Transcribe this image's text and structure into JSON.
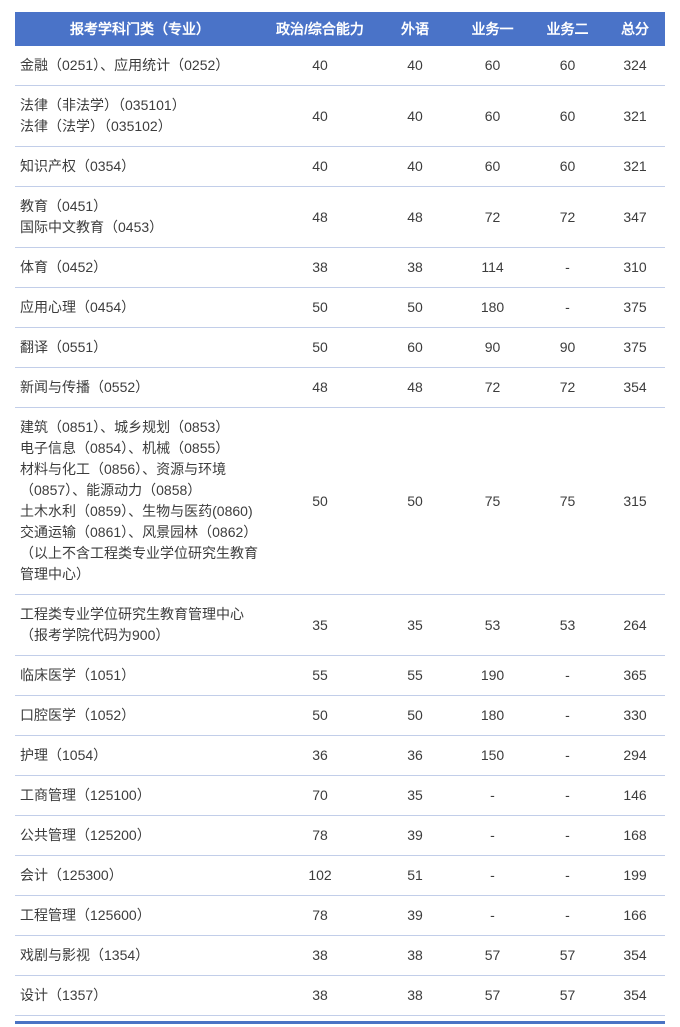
{
  "table": {
    "columns": [
      {
        "label": "报考学科门类（专业）"
      },
      {
        "label": "政治/综合能力"
      },
      {
        "label": "外语"
      },
      {
        "label": "业务一"
      },
      {
        "label": "业务二"
      },
      {
        "label": "总分"
      }
    ],
    "rows": [
      {
        "subject": "金融（0251）、应用统计（0252）",
        "politics": "40",
        "foreign": "40",
        "biz1": "60",
        "biz2": "60",
        "total": "324"
      },
      {
        "subject": "法律（非法学）（035101）\n法律（法学）（035102）",
        "politics": "40",
        "foreign": "40",
        "biz1": "60",
        "biz2": "60",
        "total": "321"
      },
      {
        "subject": "知识产权（0354）",
        "politics": "40",
        "foreign": "40",
        "biz1": "60",
        "biz2": "60",
        "total": "321"
      },
      {
        "subject": "教育（0451）\n国际中文教育（0453）",
        "politics": "48",
        "foreign": "48",
        "biz1": "72",
        "biz2": "72",
        "total": "347"
      },
      {
        "subject": "体育（0452）",
        "politics": "38",
        "foreign": "38",
        "biz1": "114",
        "biz2": "-",
        "total": "310"
      },
      {
        "subject": "应用心理（0454）",
        "politics": "50",
        "foreign": "50",
        "biz1": "180",
        "biz2": "-",
        "total": "375"
      },
      {
        "subject": "翻译（0551）",
        "politics": "50",
        "foreign": "60",
        "biz1": "90",
        "biz2": "90",
        "total": "375"
      },
      {
        "subject": "新闻与传播（0552）",
        "politics": "48",
        "foreign": "48",
        "biz1": "72",
        "biz2": "72",
        "total": "354"
      },
      {
        "subject": "建筑（0851）、城乡规划（0853）\n电子信息（0854）、机械（0855）\n材料与化工（0856）、资源与环境\n（0857）、能源动力（0858）\n土木水利（0859）、生物与医药(0860)\n交通运输（0861）、风景园林（0862）\n（以上不含工程类专业学位研究生教育管理中心）",
        "politics": "50",
        "foreign": "50",
        "biz1": "75",
        "biz2": "75",
        "total": "315"
      },
      {
        "subject": "工程类专业学位研究生教育管理中心\n（报考学院代码为900）",
        "politics": "35",
        "foreign": "35",
        "biz1": "53",
        "biz2": "53",
        "total": "264"
      },
      {
        "subject": "临床医学（1051）",
        "politics": "55",
        "foreign": "55",
        "biz1": "190",
        "biz2": "-",
        "total": "365"
      },
      {
        "subject": "口腔医学（1052）",
        "politics": "50",
        "foreign": "50",
        "biz1": "180",
        "biz2": "-",
        "total": "330"
      },
      {
        "subject": "护理（1054）",
        "politics": "36",
        "foreign": "36",
        "biz1": "150",
        "biz2": "-",
        "total": "294"
      },
      {
        "subject": "工商管理（125100）",
        "politics": "70",
        "foreign": "35",
        "biz1": "-",
        "biz2": "-",
        "total": "146"
      },
      {
        "subject": "公共管理（125200）",
        "politics": "78",
        "foreign": "39",
        "biz1": "-",
        "biz2": "-",
        "total": "168"
      },
      {
        "subject": "会计（125300）",
        "politics": "102",
        "foreign": "51",
        "biz1": "-",
        "biz2": "-",
        "total": "199"
      },
      {
        "subject": "工程管理（125600）",
        "politics": "78",
        "foreign": "39",
        "biz1": "-",
        "biz2": "-",
        "total": "166"
      },
      {
        "subject": "戏剧与影视（1354）",
        "politics": "38",
        "foreign": "38",
        "biz1": "57",
        "biz2": "57",
        "total": "354"
      },
      {
        "subject": "设计（1357）",
        "politics": "38",
        "foreign": "38",
        "biz1": "57",
        "biz2": "57",
        "total": "354"
      }
    ]
  },
  "colors": {
    "header_bg": "#4a73c8",
    "header_text": "#ffffff",
    "row_divider": "#c2cee9",
    "body_text": "#3c3c3c",
    "bottom_strip": "#4a73c4"
  }
}
